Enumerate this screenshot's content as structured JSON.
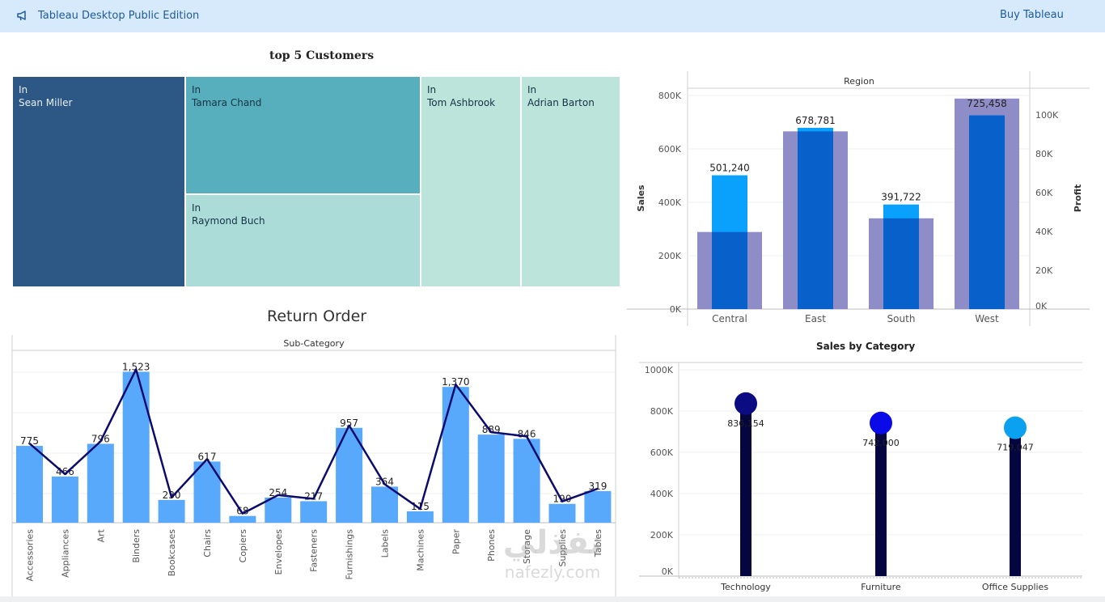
{
  "header": {
    "title": "Tableau Desktop Public Edition",
    "buy_label": "Buy Tableau",
    "icon": "megaphone-icon"
  },
  "treemap": {
    "title": "top 5 Customers",
    "tiles": [
      {
        "prefix": "In",
        "name": "Sean Miller",
        "color": "#2d5886"
      },
      {
        "prefix": "In",
        "name": "Tamara Chand",
        "color": "#57aebd"
      },
      {
        "prefix": "In",
        "name": "Raymond Buch",
        "color": "#acdcd8"
      },
      {
        "prefix": "In",
        "name": "Tom Ashbrook",
        "color": "#bce4da"
      },
      {
        "prefix": "In",
        "name": "Adrian Barton",
        "color": "#bce4da"
      }
    ]
  },
  "return_order": {
    "title": "Return Order",
    "header": "Sub-Category"
  },
  "region": {
    "header": "Region",
    "left_axis_label": "Sales",
    "right_axis_label": "Profit"
  },
  "category": {
    "title": "Sales by Category"
  },
  "watermark": {
    "arabic": "نفذلي",
    "latin": "nafezly.com"
  },
  "chart_data": [
    {
      "type": "bar",
      "title": "Return Order",
      "xlabel": "Sub-Category",
      "categories": [
        "Accessories",
        "Appliances",
        "Art",
        "Binders",
        "Bookcases",
        "Chairs",
        "Copiers",
        "Envelopes",
        "Fasteners",
        "Furnishings",
        "Labels",
        "Machines",
        "Paper",
        "Phones",
        "Storage",
        "Supplies",
        "Tables"
      ],
      "series": [
        {
          "values": [
            775,
            466,
            796,
            1523,
            230,
            617,
            68,
            254,
            217,
            957,
            364,
            115,
            1370,
            889,
            846,
            190,
            319
          ],
          "color": "#58a9fb"
        }
      ],
      "line_overlay": true,
      "line_color": "#0b0b6e",
      "data_labels": [
        "775",
        "466",
        "796",
        "1,523",
        "230",
        "617",
        "68",
        "254",
        "217",
        "957",
        "364",
        "115",
        "1,370",
        "889",
        "846",
        "190",
        "319"
      ],
      "ylim": [
        0,
        1650
      ]
    },
    {
      "type": "bar",
      "xlabel": "Region",
      "ylabel": "Sales",
      "y2label": "Profit",
      "categories": [
        "Central",
        "East",
        "South",
        "West"
      ],
      "series": [
        {
          "name": "Sales",
          "values": [
            501240,
            678781,
            391722,
            725458
          ],
          "color": "#0aa1fc"
        },
        {
          "name": "Profit",
          "values": [
            39706,
            91523,
            46749,
            108418
          ],
          "color": "#8f8dc8"
        }
      ],
      "data_labels": [
        "501,240",
        "678,781",
        "391,722",
        "725,458"
      ],
      "yticks": [
        "0K",
        "200K",
        "400K",
        "600K",
        "800K"
      ],
      "y2ticks": [
        "0K",
        "20K",
        "40K",
        "60K",
        "80K",
        "100K"
      ],
      "ylim": [
        0,
        800000
      ],
      "y2lim": [
        0,
        110000
      ],
      "overlap_color": "#0860ca"
    },
    {
      "type": "scatter",
      "title": "Sales by Category",
      "categories": [
        "Technology",
        "Furniture",
        "Office Supplies"
      ],
      "values": [
        836154,
        742000,
        719047
      ],
      "colors": [
        "#0b0b82",
        "#0a0ae8",
        "#0aa1f0"
      ],
      "data_labels": [
        "836,154",
        "742,000",
        "719,047"
      ],
      "yticks": [
        "0K",
        "200K",
        "400K",
        "600K",
        "800K",
        "1000K"
      ],
      "ylim": [
        0,
        1000000
      ]
    }
  ]
}
